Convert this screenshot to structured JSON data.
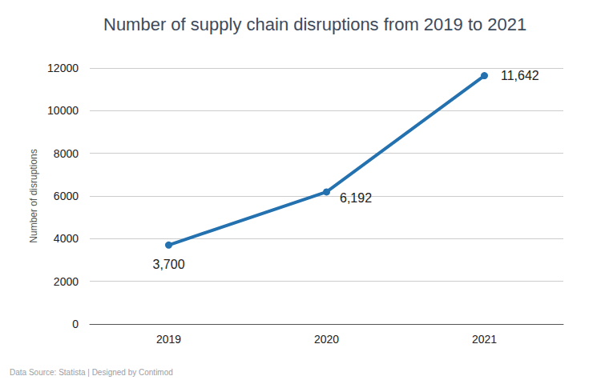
{
  "chart_data": {
    "type": "line",
    "title": "Number of supply chain disruptions from 2019 to 2021",
    "y_label": "Number of disruptions",
    "annotations": [
      "Data Source: Statista | Designed by Contimod"
    ],
    "categories": [
      "2019",
      "2020",
      "2021"
    ],
    "values": [
      3700,
      6192,
      11642
    ],
    "value_labels": [
      "3,700",
      "6,192",
      "11,642"
    ],
    "data_labels": true,
    "color": "#2471b0",
    "marker": "circle",
    "ylim": [
      0,
      12000
    ],
    "yticks": [
      0,
      2000,
      4000,
      6000,
      8000,
      10000,
      12000
    ],
    "grid": true
  }
}
